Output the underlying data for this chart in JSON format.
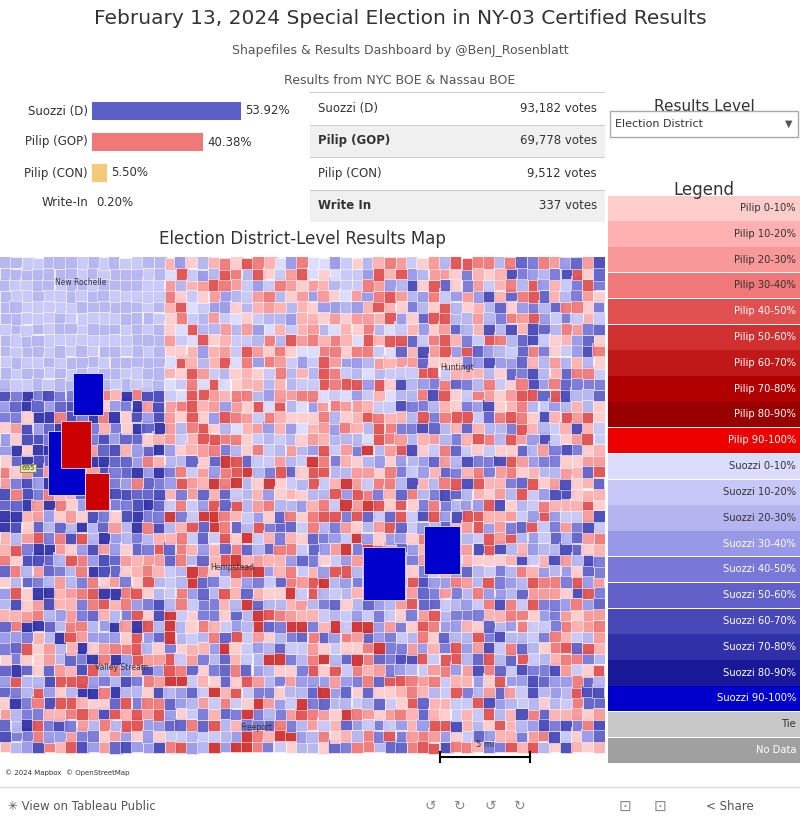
{
  "title": "February 13, 2024 Special Election in NY-03 Certified Results",
  "subtitle1": "Shapefiles & Results Dashboard by @BenJ_Rosenblatt",
  "subtitle2": "Results from NYC BOE & Nassau BOE",
  "background_color": "#ffffff",
  "candidates": [
    "Suozzi (D)",
    "Pilip (GOP)",
    "Pilip (CON)",
    "Write-In"
  ],
  "percentages": [
    53.92,
    40.38,
    5.5,
    0.2
  ],
  "bar_colors": [
    "#5b5fc7",
    "#f07878",
    "#f5c97a",
    "#cccccc"
  ],
  "vote_candidates": [
    "Suozzi (D)",
    "Pilip (GOP)",
    "Pilip (CON)",
    "Write In"
  ],
  "votes": [
    "93,182 votes",
    "69,778 votes",
    "9,512 votes",
    "337 votes"
  ],
  "vote_bold": [
    false,
    true,
    false,
    true
  ],
  "vote_bg": [
    "#ffffff",
    "#f0f0f0",
    "#ffffff",
    "#f0f0f0"
  ],
  "map_title": "Election District-Level Results Map",
  "results_level_title": "Results Level",
  "results_level_value": "Election District",
  "legend_title": "Legend",
  "legend_entries": [
    {
      "label": "Pilip 0-10%",
      "color": "#ffcccc",
      "text_color": "#333333"
    },
    {
      "label": "Pilip 10-20%",
      "color": "#ffb0b0",
      "text_color": "#333333"
    },
    {
      "label": "Pilip 20-30%",
      "color": "#f89898",
      "text_color": "#333333"
    },
    {
      "label": "Pilip 30-40%",
      "color": "#f07878",
      "text_color": "#333333"
    },
    {
      "label": "Pilip 40-50%",
      "color": "#e05050",
      "text_color": "#ffffff"
    },
    {
      "label": "Pilip 50-60%",
      "color": "#d03030",
      "text_color": "#ffffff"
    },
    {
      "label": "Pilip 60-70%",
      "color": "#c01818",
      "text_color": "#ffffff"
    },
    {
      "label": "Pilip 70-80%",
      "color": "#b00000",
      "text_color": "#ffffff"
    },
    {
      "label": "Pilip 80-90%",
      "color": "#980000",
      "text_color": "#ffffff"
    },
    {
      "label": "Pilip 90-100%",
      "color": "#ee0000",
      "text_color": "#ffffff"
    },
    {
      "label": "Suozzi 0-10%",
      "color": "#dcdcff",
      "text_color": "#333333"
    },
    {
      "label": "Suozzi 10-20%",
      "color": "#c8c8f8",
      "text_color": "#333333"
    },
    {
      "label": "Suozzi 20-30%",
      "color": "#b4b4f0",
      "text_color": "#333333"
    },
    {
      "label": "Suozzi 30-40%",
      "color": "#9898e8",
      "text_color": "#ffffff"
    },
    {
      "label": "Suozzi 40-50%",
      "color": "#7878d8",
      "text_color": "#ffffff"
    },
    {
      "label": "Suozzi 50-60%",
      "color": "#6060c8",
      "text_color": "#ffffff"
    },
    {
      "label": "Suozzi 60-70%",
      "color": "#4848b8",
      "text_color": "#ffffff"
    },
    {
      "label": "Suozzi 70-80%",
      "color": "#3030a8",
      "text_color": "#ffffff"
    },
    {
      "label": "Suozzi 80-90%",
      "color": "#181898",
      "text_color": "#ffffff"
    },
    {
      "label": "Suozzi 90-100%",
      "color": "#0000cc",
      "text_color": "#ffffff"
    },
    {
      "label": "Tie",
      "color": "#c8c8c8",
      "text_color": "#333333"
    },
    {
      "label": "No Data",
      "color": "#a0a0a0",
      "text_color": "#ffffff"
    }
  ],
  "footer_bg": "#f5f5f5",
  "footer_line_color": "#dddddd",
  "map_bg": "#c8d8e0"
}
